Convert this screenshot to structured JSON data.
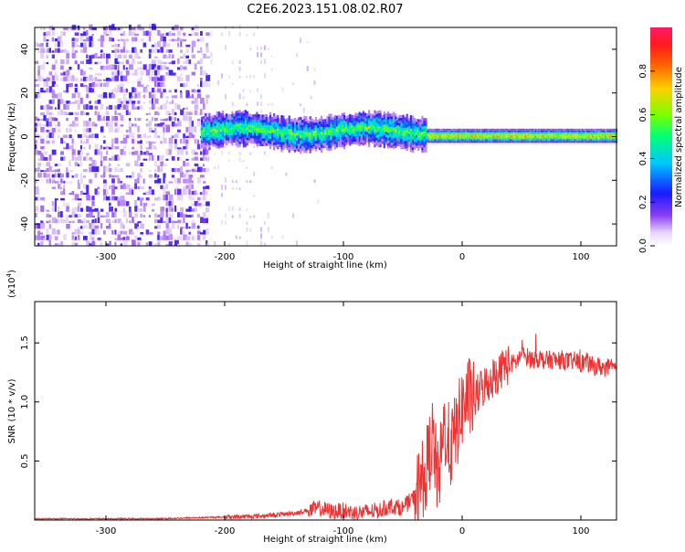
{
  "title": "C2E6.2023.151.08.02.R07",
  "colors": {
    "snr_line": "#ee3333",
    "axis": "#000000"
  },
  "chart_data": [
    {
      "type": "heatmap",
      "name": "spectrogram",
      "xlabel": "Height of straight line (km)",
      "ylabel": "Frequency (Hz)",
      "xlim": [
        -360,
        130
      ],
      "ylim": [
        -50,
        50
      ],
      "xticks": [
        "-300",
        "-200",
        "-100",
        "0",
        "100"
      ],
      "xtick_values": [
        -300,
        -200,
        -100,
        0,
        100
      ],
      "yticks": [
        "-40",
        "-20",
        "0",
        "20",
        "40"
      ],
      "ytick_values": [
        -40,
        -20,
        0,
        20,
        40
      ],
      "colorbar": {
        "label": "Normalized spectral amplitude",
        "range": [
          0,
          1
        ],
        "ticks": [
          "0.0",
          "0.2",
          "0.4",
          "0.6",
          "0.8"
        ],
        "tick_values": [
          0.0,
          0.2,
          0.4,
          0.6,
          0.8
        ]
      },
      "features": [
        {
          "region": "noise",
          "x_range": [
            -360,
            -215
          ],
          "freq_range": [
            -50,
            50
          ],
          "amplitude": 0.1
        },
        {
          "region": "sparse",
          "x_range": [
            -215,
            -120
          ],
          "freq_range": [
            -50,
            50
          ],
          "amplitude": 0.05
        },
        {
          "region": "signal_band",
          "x_range": [
            -220,
            -30
          ],
          "freq_center": 2,
          "freq_halfwidth": 6,
          "amplitude": 0.55
        },
        {
          "region": "narrow_line",
          "x_range": [
            -30,
            130
          ],
          "freq_center": 0,
          "freq_halfwidth": 2,
          "amplitude": 0.9
        }
      ]
    },
    {
      "type": "line",
      "name": "snr",
      "xlabel": "Height of straight line (km)",
      "ylabel": "SNR (10 * v/v)",
      "yscale_label": "(x10",
      "yscale_exp": "4",
      "yscale_close": ")",
      "xlim": [
        -360,
        130
      ],
      "ylim": [
        0,
        1.85
      ],
      "xticks": [
        "-300",
        "-200",
        "-100",
        "0",
        "100"
      ],
      "xtick_values": [
        -300,
        -200,
        -100,
        0,
        100
      ],
      "yticks": [
        "0.5",
        "1.0",
        "1.5"
      ],
      "ytick_values": [
        0.5,
        1.0,
        1.5
      ],
      "x": [
        -360,
        -340,
        -320,
        -300,
        -280,
        -260,
        -240,
        -220,
        -200,
        -180,
        -160,
        -140,
        -130,
        -120,
        -110,
        -100,
        -90,
        -80,
        -70,
        -60,
        -50,
        -40,
        -35,
        -30,
        -25,
        -20,
        -15,
        -10,
        -5,
        0,
        5,
        10,
        15,
        20,
        25,
        30,
        35,
        40,
        45,
        50,
        55,
        60,
        65,
        70,
        75,
        80,
        85,
        90,
        95,
        100,
        105,
        110,
        115,
        120,
        130
      ],
      "y": [
        0.01,
        0.01,
        0.01,
        0.01,
        0.01,
        0.01,
        0.015,
        0.02,
        0.025,
        0.03,
        0.04,
        0.06,
        0.08,
        0.1,
        0.07,
        0.08,
        0.06,
        0.07,
        0.08,
        0.12,
        0.1,
        0.2,
        0.3,
        0.45,
        0.7,
        0.3,
        0.8,
        0.6,
        0.75,
        0.95,
        1.05,
        1.0,
        1.1,
        1.15,
        1.2,
        1.25,
        1.3,
        1.32,
        1.33,
        1.4,
        1.38,
        1.36,
        1.37,
        1.35,
        1.36,
        1.35,
        1.36,
        1.34,
        1.35,
        1.33,
        1.34,
        1.3,
        1.3,
        1.29,
        1.28
      ]
    }
  ]
}
